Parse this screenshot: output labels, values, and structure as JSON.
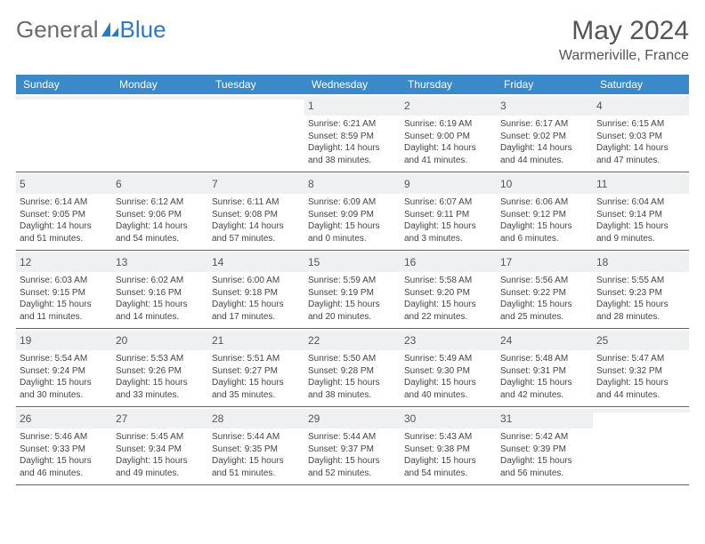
{
  "brand": {
    "part1": "General",
    "part2": "Blue"
  },
  "title": "May 2024",
  "location": "Warmeriville, France",
  "colors": {
    "header_bg": "#3b89c9",
    "header_text": "#ffffff",
    "daynum_bg": "#eef0f2",
    "rule": "#2f6fa8",
    "body_text": "#444444",
    "title_text": "#555555"
  },
  "dow": [
    "Sunday",
    "Monday",
    "Tuesday",
    "Wednesday",
    "Thursday",
    "Friday",
    "Saturday"
  ],
  "weeks": [
    [
      null,
      null,
      null,
      {
        "n": "1",
        "sr": "6:21 AM",
        "ss": "8:59 PM",
        "dh": "14",
        "dm": "38"
      },
      {
        "n": "2",
        "sr": "6:19 AM",
        "ss": "9:00 PM",
        "dh": "14",
        "dm": "41"
      },
      {
        "n": "3",
        "sr": "6:17 AM",
        "ss": "9:02 PM",
        "dh": "14",
        "dm": "44"
      },
      {
        "n": "4",
        "sr": "6:15 AM",
        "ss": "9:03 PM",
        "dh": "14",
        "dm": "47"
      }
    ],
    [
      {
        "n": "5",
        "sr": "6:14 AM",
        "ss": "9:05 PM",
        "dh": "14",
        "dm": "51"
      },
      {
        "n": "6",
        "sr": "6:12 AM",
        "ss": "9:06 PM",
        "dh": "14",
        "dm": "54"
      },
      {
        "n": "7",
        "sr": "6:11 AM",
        "ss": "9:08 PM",
        "dh": "14",
        "dm": "57"
      },
      {
        "n": "8",
        "sr": "6:09 AM",
        "ss": "9:09 PM",
        "dh": "15",
        "dm": "0"
      },
      {
        "n": "9",
        "sr": "6:07 AM",
        "ss": "9:11 PM",
        "dh": "15",
        "dm": "3"
      },
      {
        "n": "10",
        "sr": "6:06 AM",
        "ss": "9:12 PM",
        "dh": "15",
        "dm": "6"
      },
      {
        "n": "11",
        "sr": "6:04 AM",
        "ss": "9:14 PM",
        "dh": "15",
        "dm": "9"
      }
    ],
    [
      {
        "n": "12",
        "sr": "6:03 AM",
        "ss": "9:15 PM",
        "dh": "15",
        "dm": "11"
      },
      {
        "n": "13",
        "sr": "6:02 AM",
        "ss": "9:16 PM",
        "dh": "15",
        "dm": "14"
      },
      {
        "n": "14",
        "sr": "6:00 AM",
        "ss": "9:18 PM",
        "dh": "15",
        "dm": "17"
      },
      {
        "n": "15",
        "sr": "5:59 AM",
        "ss": "9:19 PM",
        "dh": "15",
        "dm": "20"
      },
      {
        "n": "16",
        "sr": "5:58 AM",
        "ss": "9:20 PM",
        "dh": "15",
        "dm": "22"
      },
      {
        "n": "17",
        "sr": "5:56 AM",
        "ss": "9:22 PM",
        "dh": "15",
        "dm": "25"
      },
      {
        "n": "18",
        "sr": "5:55 AM",
        "ss": "9:23 PM",
        "dh": "15",
        "dm": "28"
      }
    ],
    [
      {
        "n": "19",
        "sr": "5:54 AM",
        "ss": "9:24 PM",
        "dh": "15",
        "dm": "30"
      },
      {
        "n": "20",
        "sr": "5:53 AM",
        "ss": "9:26 PM",
        "dh": "15",
        "dm": "33"
      },
      {
        "n": "21",
        "sr": "5:51 AM",
        "ss": "9:27 PM",
        "dh": "15",
        "dm": "35"
      },
      {
        "n": "22",
        "sr": "5:50 AM",
        "ss": "9:28 PM",
        "dh": "15",
        "dm": "38"
      },
      {
        "n": "23",
        "sr": "5:49 AM",
        "ss": "9:30 PM",
        "dh": "15",
        "dm": "40"
      },
      {
        "n": "24",
        "sr": "5:48 AM",
        "ss": "9:31 PM",
        "dh": "15",
        "dm": "42"
      },
      {
        "n": "25",
        "sr": "5:47 AM",
        "ss": "9:32 PM",
        "dh": "15",
        "dm": "44"
      }
    ],
    [
      {
        "n": "26",
        "sr": "5:46 AM",
        "ss": "9:33 PM",
        "dh": "15",
        "dm": "46"
      },
      {
        "n": "27",
        "sr": "5:45 AM",
        "ss": "9:34 PM",
        "dh": "15",
        "dm": "49"
      },
      {
        "n": "28",
        "sr": "5:44 AM",
        "ss": "9:35 PM",
        "dh": "15",
        "dm": "51"
      },
      {
        "n": "29",
        "sr": "5:44 AM",
        "ss": "9:37 PM",
        "dh": "15",
        "dm": "52"
      },
      {
        "n": "30",
        "sr": "5:43 AM",
        "ss": "9:38 PM",
        "dh": "15",
        "dm": "54"
      },
      {
        "n": "31",
        "sr": "5:42 AM",
        "ss": "9:39 PM",
        "dh": "15",
        "dm": "56"
      },
      null
    ]
  ],
  "labels": {
    "sunrise": "Sunrise:",
    "sunset": "Sunset:",
    "daylight": "Daylight:",
    "hours": "hours",
    "and": "and",
    "minutes": "minutes."
  }
}
